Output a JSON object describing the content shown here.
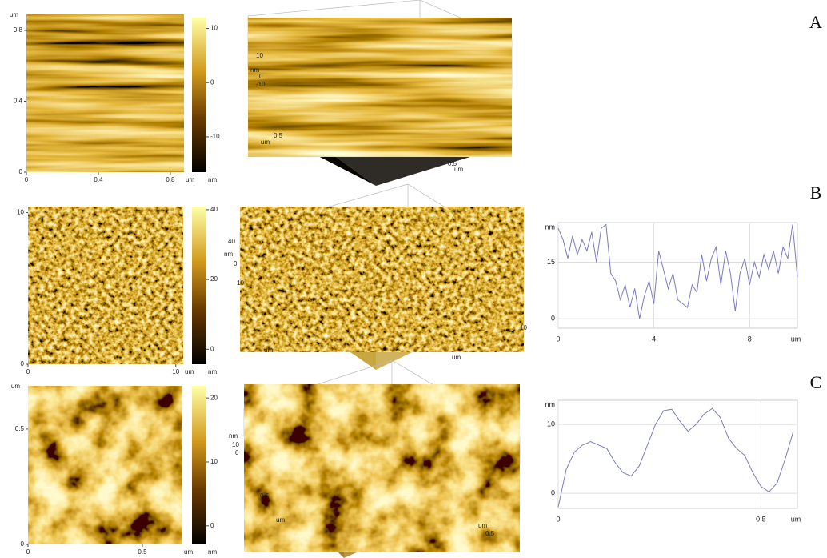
{
  "panels": [
    {
      "label": "A",
      "image": {
        "xlim": [
          0,
          0.876
        ],
        "xticks": [
          0,
          0.4,
          0.8
        ],
        "ylim": [
          0,
          0.89
        ],
        "yticks": [
          0,
          0.4,
          0.8
        ],
        "xunit": "um",
        "yunit": "um"
      },
      "colorbar": {
        "range": [
          -16.5,
          12
        ],
        "ticks": [
          -10,
          0,
          10
        ],
        "unit": "nm"
      },
      "view3d": [
        "10",
        "nm",
        "0",
        "-10",
        "um",
        "0.5",
        "0.5",
        "um"
      ]
    },
    {
      "label": "B",
      "image": {
        "xlim": [
          0,
          10.5
        ],
        "xticks": [
          0,
          10
        ],
        "ylim": [
          0,
          10.4
        ],
        "yticks": [
          0,
          10
        ],
        "xunit": "um"
      },
      "colorbar": {
        "range": [
          -4.3,
          40.9
        ],
        "ticks": [
          0,
          20,
          40
        ],
        "unit": "nm"
      },
      "view3d": [
        "40",
        "nm",
        "0",
        "10",
        "um",
        "um",
        "10"
      ]
    },
    {
      "label": "C",
      "image": {
        "xlim": [
          0,
          0.675
        ],
        "xticks": [
          0,
          0.5
        ],
        "ylim": [
          0,
          0.687
        ],
        "yticks": [
          0,
          0.5
        ],
        "xunit": "um",
        "yunit": "um"
      },
      "colorbar": {
        "range": [
          -2.9,
          21.9
        ],
        "ticks": [
          0,
          10,
          20
        ],
        "unit": "nm"
      },
      "view3d": [
        "nm",
        "10",
        "0",
        "0.5",
        "um",
        "0.5",
        "um"
      ]
    }
  ],
  "chart_data": [
    {
      "type": "line",
      "y_label": "nm",
      "x_label": "um",
      "color": "#7b7bbd",
      "grid": true,
      "x": [
        0,
        0.2,
        0.4,
        0.6,
        0.8,
        1,
        1.2,
        1.4,
        1.6,
        1.8,
        2,
        2.2,
        2.4,
        2.6,
        2.8,
        3,
        3.2,
        3.4,
        3.6,
        3.8,
        4,
        4.2,
        4.4,
        4.6,
        4.8,
        5,
        5.2,
        5.4,
        5.6,
        5.8,
        6,
        6.2,
        6.4,
        6.6,
        6.8,
        7,
        7.2,
        7.4,
        7.6,
        7.8,
        8,
        8.2,
        8.4,
        8.6,
        8.8,
        9,
        9.2,
        9.4,
        9.6,
        9.8,
        10
      ],
      "values": [
        24,
        21,
        16,
        22,
        17,
        21,
        18,
        23,
        15,
        24,
        25,
        12,
        10,
        5,
        9,
        3,
        8,
        0,
        6,
        10,
        4,
        18,
        13,
        8,
        12,
        5,
        4,
        3,
        9,
        7,
        17,
        10,
        16,
        19,
        9,
        18,
        12,
        2,
        12,
        16,
        9,
        15,
        11,
        17,
        13,
        18,
        12,
        19,
        16,
        25,
        11
      ],
      "xlim": [
        0,
        10
      ],
      "xticks": [
        0,
        4,
        8
      ],
      "ylim": [
        -2.5,
        25.5
      ],
      "yticks": [
        0,
        15
      ]
    },
    {
      "type": "line",
      "y_label": "nm",
      "x_label": "um",
      "color": "#7b7bbd",
      "grid": true,
      "x": [
        0,
        0.02,
        0.04,
        0.06,
        0.08,
        0.1,
        0.12,
        0.14,
        0.16,
        0.18,
        0.2,
        0.22,
        0.24,
        0.26,
        0.28,
        0.3,
        0.32,
        0.34,
        0.36,
        0.38,
        0.4,
        0.42,
        0.44,
        0.46,
        0.48,
        0.5,
        0.52,
        0.54,
        0.56,
        0.58
      ],
      "values": [
        -2,
        3.5,
        6,
        7,
        7.5,
        7,
        6.5,
        4.5,
        3,
        2.5,
        4,
        7,
        10,
        12,
        12.2,
        10.5,
        9,
        10,
        11.5,
        12.3,
        11,
        8,
        6.5,
        5.5,
        3,
        1,
        0.2,
        1.5,
        5,
        9
      ],
      "xlim": [
        0,
        0.59
      ],
      "xticks": [
        0,
        0.5
      ],
      "ylim": [
        -2.2,
        13.5
      ],
      "yticks": [
        0,
        10
      ]
    }
  ]
}
